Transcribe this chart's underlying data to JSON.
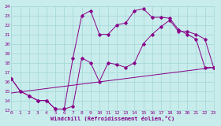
{
  "bg_color": "#c8ecec",
  "grid_color": "#a8d8d8",
  "line_color": "#880088",
  "xlabel": "Windchill (Refroidissement éolien,°C)",
  "xmin": 0,
  "xmax": 23,
  "ymin": 13,
  "ymax": 24,
  "line1_x": [
    0,
    1,
    2,
    3,
    4,
    5,
    6,
    7,
    8,
    9,
    10,
    11,
    12,
    13,
    14,
    15,
    16,
    17,
    18,
    19,
    20,
    21,
    22,
    23
  ],
  "line1_y": [
    16.3,
    15.0,
    14.5,
    14.0,
    14.0,
    13.1,
    13.1,
    13.4,
    18.5,
    18.0,
    16.0,
    18.0,
    17.8,
    17.5,
    18.0,
    20.0,
    21.0,
    21.8,
    22.5,
    21.3,
    21.3,
    21.0,
    20.5,
    17.5
  ],
  "line2_x": [
    0,
    1,
    2,
    3,
    4,
    5,
    6,
    7,
    8,
    9,
    10,
    11,
    12,
    13,
    14,
    15,
    16,
    17,
    18,
    19,
    20,
    21,
    22,
    23
  ],
  "line2_y": [
    16.3,
    15.0,
    14.5,
    14.0,
    14.0,
    13.1,
    13.1,
    18.5,
    23.0,
    23.5,
    21.0,
    21.0,
    22.0,
    22.2,
    23.5,
    23.7,
    22.8,
    22.8,
    22.7,
    21.5,
    21.0,
    20.5,
    17.5,
    17.5
  ],
  "line3_x": [
    0,
    23
  ],
  "line3_y": [
    14.8,
    17.5
  ]
}
